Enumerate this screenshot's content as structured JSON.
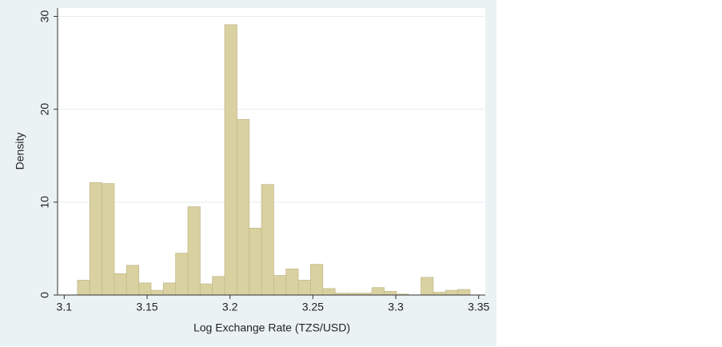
{
  "chart_data": {
    "type": "histogram",
    "x_label": "Log Exchange Rate (TZS/USD)",
    "y_label": "Density",
    "bins": [
      3.108,
      3.1154,
      3.1228,
      3.1302,
      3.1376,
      3.145,
      3.1524,
      3.1598,
      3.1672,
      3.1746,
      3.182,
      3.1894,
      3.1968,
      3.2042,
      3.2116,
      3.219,
      3.2264,
      3.2338,
      3.2412,
      3.2486,
      3.256,
      3.2634,
      3.2708,
      3.2782,
      3.2856,
      3.293,
      3.3004,
      3.3078,
      3.3152,
      3.3226,
      3.33,
      3.3374,
      3.3448
    ],
    "values": [
      1.6,
      12.1,
      12.0,
      2.3,
      3.2,
      1.3,
      0.5,
      1.3,
      4.5,
      9.5,
      1.2,
      2.0,
      29.1,
      18.9,
      7.2,
      11.9,
      2.1,
      2.8,
      1.6,
      3.3,
      0.7,
      0.2,
      0.2,
      0.2,
      0.8,
      0.4,
      0.1,
      0.0,
      1.9,
      0.3,
      0.5,
      0.6
    ],
    "color": "#d9d1a0",
    "xlim": [
      3.096,
      3.354
    ],
    "xticks": [
      3.1,
      3.15,
      3.2,
      3.25,
      3.3,
      3.35
    ],
    "ylim": [
      0,
      30.9
    ],
    "yticks": [
      0,
      10,
      20,
      30
    ],
    "grid": true
  }
}
